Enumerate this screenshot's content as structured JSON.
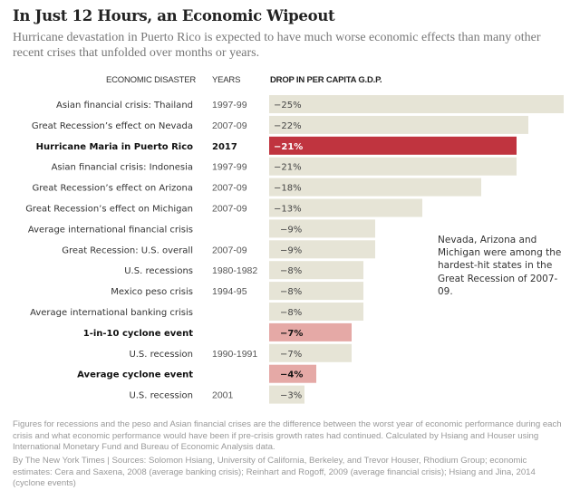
{
  "header": {
    "title": "In Just 12 Hours, an Economic Wipeout",
    "subtitle": "Hurricane devastation in Puerto Rico is expected to have much worse economic effects than many other recent crises that unfolded over months or years."
  },
  "columns": {
    "disaster": "ECONOMIC DISASTER",
    "years": "YEARS",
    "drop": "DROP IN PER CAPITA G.D.P."
  },
  "annotation": "Nevada, Arizona and Michigan were among the hardest-hit states in the Great Recession of 2007-09.",
  "footnotes": {
    "method": "Figures for recessions and the peso and Asian financial crises are the difference between the worst year of economic performance during each crisis and what economic performance would have been if pre-crisis growth rates had continued. Calculated by Hsiang and Houser using International Monetary Fund and Bureau of Economic Analysis data.",
    "sources": "By The New York Times | Sources: Solomon Hsiang, University of California, Berkeley, and Trevor Houser, Rhodium Group; economic estimates: Cera and Saxena, 2008 (average banking crisis); Reinhart and Rogoff, 2009 (average financial crisis); Hsiang and Jina, 2014 (cyclone events)"
  },
  "colors": {
    "default_bar": "#e6e4d6",
    "highlight_bar": "#c0343f",
    "cyclone_bar": "#e5a9a6"
  },
  "chart_data": {
    "type": "bar",
    "orientation": "horizontal",
    "title": "In Just 12 Hours, an Economic Wipeout",
    "xlabel": "Drop in per capita G.D.P. (%)",
    "ylabel": "Economic disaster",
    "xlim": [
      0,
      -25
    ],
    "grid": false,
    "categories": [
      "Asian financial crisis: Thailand",
      "Great Recession’s effect on Nevada",
      "Hurricane Maria in Puerto Rico",
      "Asian financial crisis: Indonesia",
      "Great Recession’s effect on Arizona",
      "Great Recession’s effect on Michigan",
      "Average international financial crisis",
      "Great Recession: U.S. overall",
      "U.S. recessions",
      "Mexico peso crisis",
      "Average international banking crisis",
      "1-in-10 cyclone event",
      "U.S. recession",
      "Average cyclone event",
      "U.S. recession"
    ],
    "years": [
      "1997-99",
      "2007-09",
      "2017",
      "1997-99",
      "2007-09",
      "2007-09",
      "",
      "2007-09",
      "1980-1982",
      "1994-95",
      "",
      "",
      "1990-1991",
      "",
      "2001"
    ],
    "values": [
      -25,
      -22,
      -21,
      -21,
      -18,
      -13,
      -9,
      -9,
      -8,
      -8,
      -8,
      -7,
      -7,
      -4,
      -3
    ],
    "labels": [
      "−25%",
      "−22%",
      "−21%",
      "−21%",
      "−18%",
      "−13%",
      "−9%",
      "−9%",
      "−8%",
      "−8%",
      "−8%",
      "−7%",
      "−7%",
      "−4%",
      "−3%"
    ],
    "styles": [
      "default",
      "default",
      "highlight",
      "default",
      "default",
      "default",
      "default",
      "default",
      "default",
      "default",
      "default",
      "cyclone",
      "default",
      "cyclone",
      "default"
    ]
  }
}
